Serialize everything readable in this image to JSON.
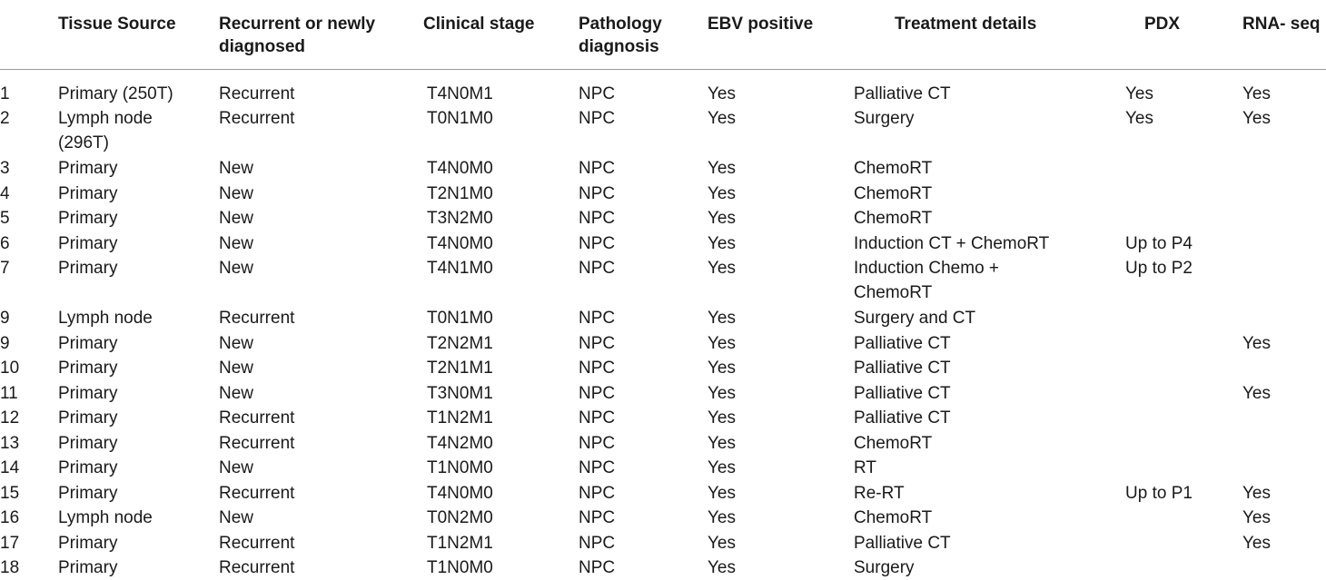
{
  "table": {
    "headers": [
      {
        "text": "",
        "lines": []
      },
      {
        "text": "Tissue Source",
        "lines": [
          "Tissue Source"
        ]
      },
      {
        "text": "Recurrent or newly diagnosed",
        "lines": [
          "Recurrent or newly",
          "diagnosed"
        ]
      },
      {
        "text": "Clinical stage",
        "lines": [
          "Clinical stage"
        ]
      },
      {
        "text": "Pathology diagnosis",
        "lines": [
          "Pathology",
          "diagnosis"
        ]
      },
      {
        "text": "EBV positive",
        "lines": [
          "EBV positive"
        ]
      },
      {
        "text": "Treatment details",
        "lines": [
          "Treatment details"
        ]
      },
      {
        "text": "PDX",
        "lines": [
          "PDX"
        ]
      },
      {
        "text": "RNA- seq",
        "lines": [
          "RNA- seq"
        ]
      }
    ],
    "rows": [
      [
        [
          "1"
        ],
        [
          "Primary (250T)"
        ],
        [
          "Recurrent"
        ],
        [
          "T4N0M1"
        ],
        [
          "NPC"
        ],
        [
          "Yes"
        ],
        [
          "Palliative CT"
        ],
        [
          "Yes"
        ],
        [
          "Yes"
        ]
      ],
      [
        [
          "2"
        ],
        [
          "Lymph node",
          "(296T)"
        ],
        [
          "Recurrent"
        ],
        [
          "T0N1M0"
        ],
        [
          "NPC"
        ],
        [
          "Yes"
        ],
        [
          "Surgery"
        ],
        [
          "Yes"
        ],
        [
          "Yes"
        ]
      ],
      [
        [
          "3"
        ],
        [
          "Primary"
        ],
        [
          "New"
        ],
        [
          "T4N0M0"
        ],
        [
          "NPC"
        ],
        [
          "Yes"
        ],
        [
          "ChemoRT"
        ],
        [],
        []
      ],
      [
        [
          "4"
        ],
        [
          "Primary"
        ],
        [
          "New"
        ],
        [
          "T2N1M0"
        ],
        [
          "NPC"
        ],
        [
          "Yes"
        ],
        [
          "ChemoRT"
        ],
        [],
        []
      ],
      [
        [
          "5"
        ],
        [
          "Primary"
        ],
        [
          "New"
        ],
        [
          "T3N2M0"
        ],
        [
          "NPC"
        ],
        [
          "Yes"
        ],
        [
          "ChemoRT"
        ],
        [],
        []
      ],
      [
        [
          "6"
        ],
        [
          "Primary"
        ],
        [
          "New"
        ],
        [
          "T4N0M0"
        ],
        [
          "NPC"
        ],
        [
          "Yes"
        ],
        [
          "Induction CT + ChemoRT"
        ],
        [
          "Up to P4"
        ],
        []
      ],
      [
        [
          "7"
        ],
        [
          "Primary"
        ],
        [
          "New"
        ],
        [
          "T4N1M0"
        ],
        [
          "NPC"
        ],
        [
          "Yes"
        ],
        [
          "Induction Chemo +",
          "ChemoRT"
        ],
        [
          "Up to P2"
        ],
        []
      ],
      [
        [
          "9"
        ],
        [
          "Lymph node"
        ],
        [
          "Recurrent"
        ],
        [
          "T0N1M0"
        ],
        [
          "NPC"
        ],
        [
          "Yes"
        ],
        [
          "Surgery and CT"
        ],
        [],
        []
      ],
      [
        [
          "9"
        ],
        [
          "Primary"
        ],
        [
          "New"
        ],
        [
          "T2N2M1"
        ],
        [
          "NPC"
        ],
        [
          "Yes"
        ],
        [
          "Palliative CT"
        ],
        [],
        [
          "Yes"
        ]
      ],
      [
        [
          "10"
        ],
        [
          "Primary"
        ],
        [
          "New"
        ],
        [
          "T2N1M1"
        ],
        [
          "NPC"
        ],
        [
          "Yes"
        ],
        [
          "Palliative CT"
        ],
        [],
        []
      ],
      [
        [
          "11"
        ],
        [
          "Primary"
        ],
        [
          "New"
        ],
        [
          "T3N0M1"
        ],
        [
          "NPC"
        ],
        [
          "Yes"
        ],
        [
          "Palliative CT"
        ],
        [],
        [
          "Yes"
        ]
      ],
      [
        [
          "12"
        ],
        [
          "Primary"
        ],
        [
          "Recurrent"
        ],
        [
          "T1N2M1"
        ],
        [
          "NPC"
        ],
        [
          "Yes"
        ],
        [
          "Palliative CT"
        ],
        [],
        []
      ],
      [
        [
          "13"
        ],
        [
          "Primary"
        ],
        [
          "Recurrent"
        ],
        [
          "T4N2M0"
        ],
        [
          "NPC"
        ],
        [
          "Yes"
        ],
        [
          "ChemoRT"
        ],
        [],
        []
      ],
      [
        [
          "14"
        ],
        [
          "Primary"
        ],
        [
          "New"
        ],
        [
          "T1N0M0"
        ],
        [
          "NPC"
        ],
        [
          "Yes"
        ],
        [
          "RT"
        ],
        [],
        []
      ],
      [
        [
          "15"
        ],
        [
          "Primary"
        ],
        [
          "Recurrent"
        ],
        [
          "T4N0M0"
        ],
        [
          "NPC"
        ],
        [
          "Yes"
        ],
        [
          "Re-RT"
        ],
        [
          "Up to P1"
        ],
        [
          "Yes"
        ]
      ],
      [
        [
          "16"
        ],
        [
          "Lymph node"
        ],
        [
          "New"
        ],
        [
          "T0N2M0"
        ],
        [
          "NPC"
        ],
        [
          "Yes"
        ],
        [
          "ChemoRT"
        ],
        [],
        [
          "Yes"
        ]
      ],
      [
        [
          "17"
        ],
        [
          "Primary"
        ],
        [
          "Recurrent"
        ],
        [
          "T1N2M1"
        ],
        [
          "NPC"
        ],
        [
          "Yes"
        ],
        [
          "Palliative CT"
        ],
        [],
        [
          "Yes"
        ]
      ],
      [
        [
          "18"
        ],
        [
          "Primary"
        ],
        [
          "Recurrent"
        ],
        [
          "T1N0M0"
        ],
        [
          "NPC"
        ],
        [
          "Yes"
        ],
        [
          "Surgery"
        ],
        [],
        []
      ]
    ]
  }
}
